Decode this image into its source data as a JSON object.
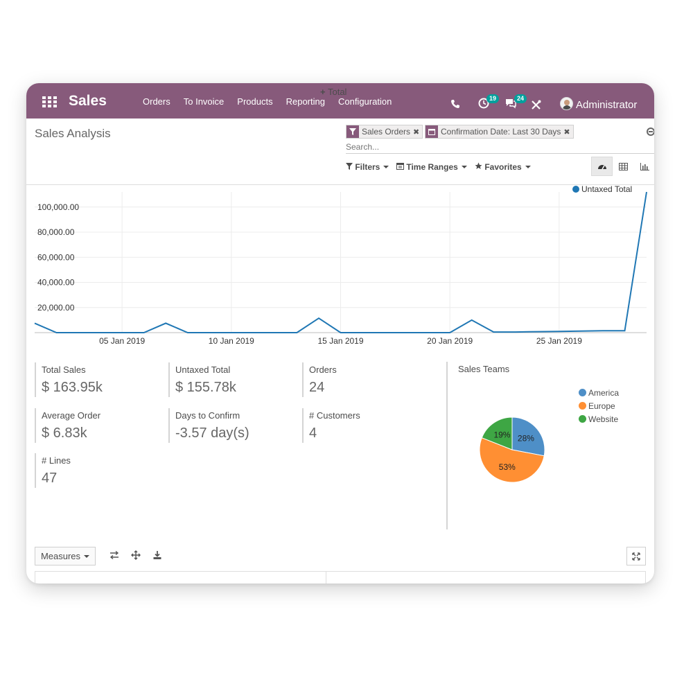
{
  "navbar": {
    "app_title": "Sales",
    "menu": [
      "Orders",
      "To Invoice",
      "Products",
      "Reporting",
      "Configuration"
    ],
    "activity_count": "19",
    "messages_count": "24",
    "user_name": "Administrator"
  },
  "control_panel": {
    "breadcrumb": "Sales Analysis",
    "facets": [
      {
        "label": "Sales Orders",
        "icon": "filter-icon"
      },
      {
        "label": "Confirmation Date: Last 30 Days",
        "icon": "calendar-icon"
      }
    ],
    "search_placeholder": "Search...",
    "filters_label": "Filters",
    "time_ranges_label": "Time Ranges",
    "favorites_label": "Favorites",
    "views": [
      "dashboard-icon",
      "pivot-icon",
      "graph-icon"
    ],
    "active_view": "dashboard-icon"
  },
  "chart_data": [
    {
      "type": "line",
      "title": "",
      "legend": "top-right",
      "series": [
        {
          "name": "Untaxed Total",
          "color": "#1f77b4"
        }
      ],
      "x_ticks": [
        "05 Jan 2019",
        "10 Jan 2019",
        "15 Jan 2019",
        "20 Jan 2019",
        "25 Jan 2019"
      ],
      "y_ticks": [
        "20,000.00",
        "40,000.00",
        "60,000.00",
        "80,000.00",
        "100,000.00"
      ],
      "ylim": [
        0,
        112000
      ],
      "grid": true,
      "points": [
        {
          "x": "2019-01-01",
          "y": 7500
        },
        {
          "x": "2019-01-02",
          "y": 0
        },
        {
          "x": "2019-01-03",
          "y": 0
        },
        {
          "x": "2019-01-04",
          "y": 0
        },
        {
          "x": "2019-01-05",
          "y": 0
        },
        {
          "x": "2019-01-06",
          "y": 0
        },
        {
          "x": "2019-01-07",
          "y": 7500
        },
        {
          "x": "2019-01-08",
          "y": 0
        },
        {
          "x": "2019-01-09",
          "y": 0
        },
        {
          "x": "2019-01-10",
          "y": 0
        },
        {
          "x": "2019-01-11",
          "y": 0
        },
        {
          "x": "2019-01-12",
          "y": 0
        },
        {
          "x": "2019-01-13",
          "y": 0
        },
        {
          "x": "2019-01-14",
          "y": 11500
        },
        {
          "x": "2019-01-15",
          "y": 0
        },
        {
          "x": "2019-01-16",
          "y": 0
        },
        {
          "x": "2019-01-17",
          "y": 0
        },
        {
          "x": "2019-01-18",
          "y": 0
        },
        {
          "x": "2019-01-19",
          "y": 0
        },
        {
          "x": "2019-01-20",
          "y": 0
        },
        {
          "x": "2019-01-21",
          "y": 10000
        },
        {
          "x": "2019-01-22",
          "y": 500
        },
        {
          "x": "2019-01-23",
          "y": 500
        },
        {
          "x": "2019-01-24",
          "y": 800
        },
        {
          "x": "2019-01-25",
          "y": 1000
        },
        {
          "x": "2019-01-26",
          "y": 1200
        },
        {
          "x": "2019-01-27",
          "y": 1500
        },
        {
          "x": "2019-01-28",
          "y": 1500
        },
        {
          "x": "2019-01-29",
          "y": 112000
        }
      ]
    },
    {
      "type": "pie",
      "title": "Sales Teams",
      "legend": "right",
      "slices": [
        {
          "name": "America",
          "value": 28,
          "label": "28%",
          "color": "#4e8fc7"
        },
        {
          "name": "Europe",
          "value": 53,
          "label": "53%",
          "color": "#ff8f33"
        },
        {
          "name": "Website",
          "value": 19,
          "label": "19%",
          "color": "#3ea644"
        }
      ]
    }
  ],
  "kpis": [
    {
      "label": "Total Sales",
      "value": "$ 163.95k"
    },
    {
      "label": "Untaxed Total",
      "value": "$ 155.78k"
    },
    {
      "label": "Orders",
      "value": "24"
    },
    {
      "label": "Average Order",
      "value": "$ 6.83k"
    },
    {
      "label": "Days to Confirm",
      "value": "-3.57 day(s)"
    },
    {
      "label": "# Customers",
      "value": "4"
    },
    {
      "label": "# Lines",
      "value": "47"
    }
  ],
  "pivot": {
    "measures_label": "Measures",
    "total_header": "Total"
  },
  "colors": {
    "brand": "#875a7b",
    "badge": "#00a09d",
    "line": "#1f77b4"
  }
}
